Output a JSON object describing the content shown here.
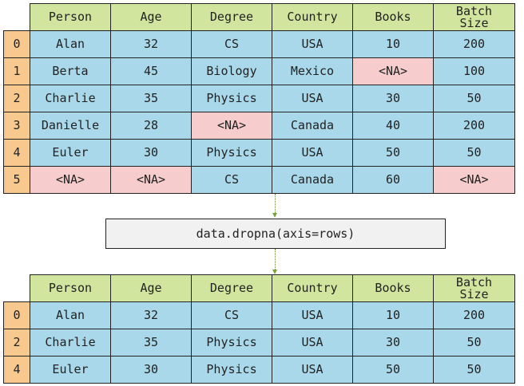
{
  "columns": [
    "Person",
    "Age",
    "Degree",
    "Country",
    "Books",
    [
      "Batch",
      "Size"
    ]
  ],
  "top_table": {
    "rows": [
      {
        "index": "0",
        "cells": [
          "Alan",
          "32",
          "CS",
          "USA",
          "10",
          "200"
        ]
      },
      {
        "index": "1",
        "cells": [
          "Berta",
          "45",
          "Biology",
          "Mexico",
          "<NA>",
          "100"
        ]
      },
      {
        "index": "2",
        "cells": [
          "Charlie",
          "35",
          "Physics",
          "USA",
          "30",
          "50"
        ]
      },
      {
        "index": "3",
        "cells": [
          "Danielle",
          "28",
          "<NA>",
          "Canada",
          "40",
          "200"
        ]
      },
      {
        "index": "4",
        "cells": [
          "Euler",
          "30",
          "Physics",
          "USA",
          "50",
          "50"
        ]
      },
      {
        "index": "5",
        "cells": [
          "<NA>",
          "<NA>",
          "CS",
          "Canada",
          "60",
          "<NA>"
        ]
      }
    ]
  },
  "operation": "data.dropna(axis=rows)",
  "bottom_table": {
    "rows": [
      {
        "index": "0",
        "cells": [
          "Alan",
          "32",
          "CS",
          "USA",
          "10",
          "200"
        ]
      },
      {
        "index": "2",
        "cells": [
          "Charlie",
          "35",
          "Physics",
          "USA",
          "30",
          "50"
        ]
      },
      {
        "index": "4",
        "cells": [
          "Euler",
          "30",
          "Physics",
          "USA",
          "50",
          "50"
        ]
      }
    ]
  },
  "colors": {
    "header": "#d2e59e",
    "index": "#f7c98f",
    "cell": "#a8d8ea",
    "missing": "#f7cccc",
    "op_box": "#f1f1f1"
  },
  "missing_marker": "<NA>"
}
